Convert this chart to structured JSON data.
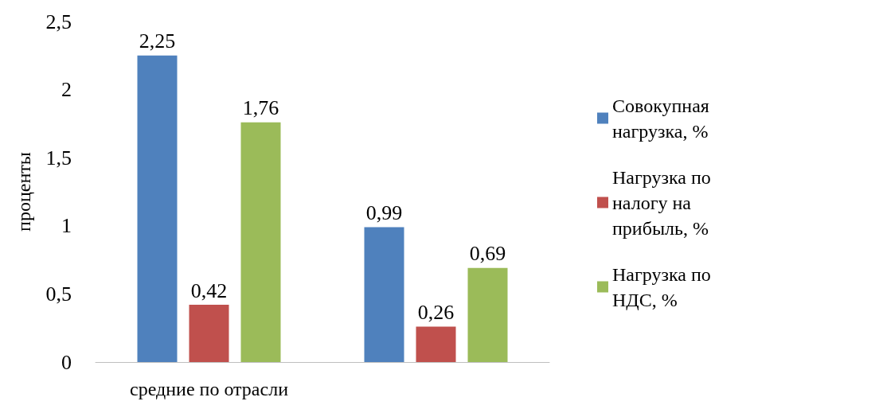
{
  "chart_data": {
    "type": "bar",
    "ylabel": "проценты",
    "categories": [
      "средние по отрасли",
      null
    ],
    "series": [
      {
        "name": "Совокупная нагрузка, %",
        "color": "#4f81bd",
        "values": [
          2.25,
          0.99
        ],
        "value_labels": [
          "2,25",
          "0,99"
        ]
      },
      {
        "name": "Нагрузка по налогу на прибыль, %",
        "color": "#c0504d",
        "values": [
          0.42,
          0.26
        ],
        "value_labels": [
          "0,42",
          "0,26"
        ]
      },
      {
        "name": "Нагрузка по НДС, %",
        "color": "#9bbb59",
        "values": [
          1.76,
          0.69
        ],
        "value_labels": [
          "1,76",
          "0,69"
        ]
      }
    ],
    "ylim": [
      0,
      2.5
    ],
    "yticks": [
      0,
      {
        "value": 0.5,
        "label": "0,5"
      },
      1,
      {
        "value": 1.5,
        "label": "1,5"
      },
      2,
      {
        "value": 2.5,
        "label": "2,5"
      }
    ],
    "grid": false,
    "legend": "right"
  }
}
